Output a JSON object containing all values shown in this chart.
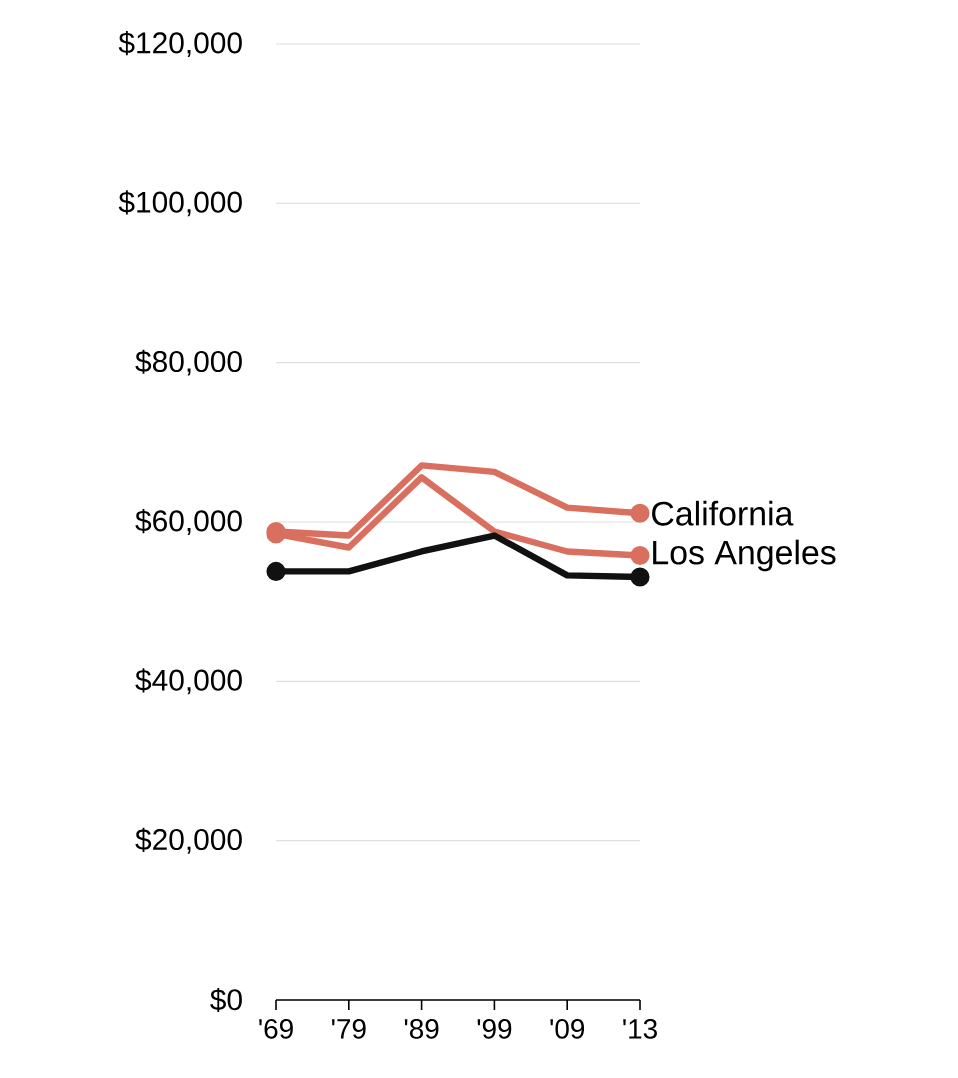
{
  "chart_data": {
    "type": "line",
    "categories": [
      "'69",
      "'79",
      "'89",
      "'99",
      "'09",
      "'13"
    ],
    "series": [
      {
        "name": "California",
        "color": "#d9705f",
        "values": [
          58800,
          58300,
          67100,
          66300,
          61800,
          61100
        ]
      },
      {
        "name": "Los Angeles",
        "color": "#d9705f",
        "values": [
          58500,
          56800,
          65600,
          58800,
          56300,
          55800
        ]
      },
      {
        "color": "#111111",
        "values": [
          53800,
          53800,
          56300,
          58300,
          53300,
          53100
        ]
      }
    ],
    "ylim": [
      0,
      120000
    ],
    "yticks": [
      {
        "value": 0,
        "label": "$0"
      },
      {
        "value": 20000,
        "label": "$20,000"
      },
      {
        "value": 40000,
        "label": "$40,000"
      },
      {
        "value": 60000,
        "label": "$60,000"
      },
      {
        "value": 80000,
        "label": "$80,000"
      },
      {
        "value": 100000,
        "label": "$100,000"
      },
      {
        "value": 120000,
        "label": "$120,000"
      }
    ],
    "grid": "y",
    "legend": false,
    "line_style": "solid"
  }
}
